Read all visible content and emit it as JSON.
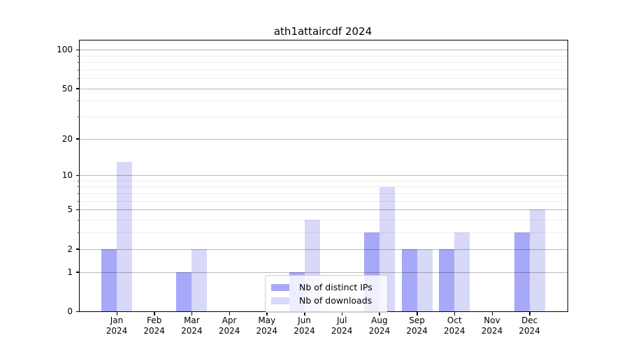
{
  "title": "ath1attaircdf 2024",
  "chart_data": {
    "type": "bar",
    "title": "ath1attaircdf 2024",
    "categories": [
      "Jan",
      "Feb",
      "Mar",
      "Apr",
      "May",
      "Jun",
      "Jul",
      "Aug",
      "Sep",
      "Oct",
      "Nov",
      "Dec"
    ],
    "category_year": "2024",
    "series": [
      {
        "name": "Nb of distinct IPs",
        "color": "#a8a8f8",
        "values": [
          2,
          0,
          1,
          0,
          0,
          1,
          0,
          3,
          2,
          2,
          0,
          3
        ]
      },
      {
        "name": "Nb of downloads",
        "color": "#d8d8f8",
        "values": [
          13,
          0,
          2,
          0,
          0,
          4,
          0,
          8,
          2,
          3,
          0,
          5
        ]
      }
    ],
    "yscale": "log1p",
    "yticks": [
      0,
      1,
      2,
      5,
      10,
      20,
      50,
      100
    ],
    "yticks_minor": [
      3,
      4,
      6,
      7,
      8,
      9,
      30,
      40,
      60,
      70,
      80,
      90
    ],
    "ylim": [
      0,
      117.6
    ],
    "xlabel": "",
    "ylabel": "",
    "grid": true,
    "legend_position": "lower center"
  },
  "colors": {
    "background": "#ffffff",
    "spine": "#000000",
    "grid_major": "#b8b8b8",
    "grid_minor": "#ececec",
    "series_dark": "#a8a8f8",
    "series_light": "#d8d8f8"
  }
}
